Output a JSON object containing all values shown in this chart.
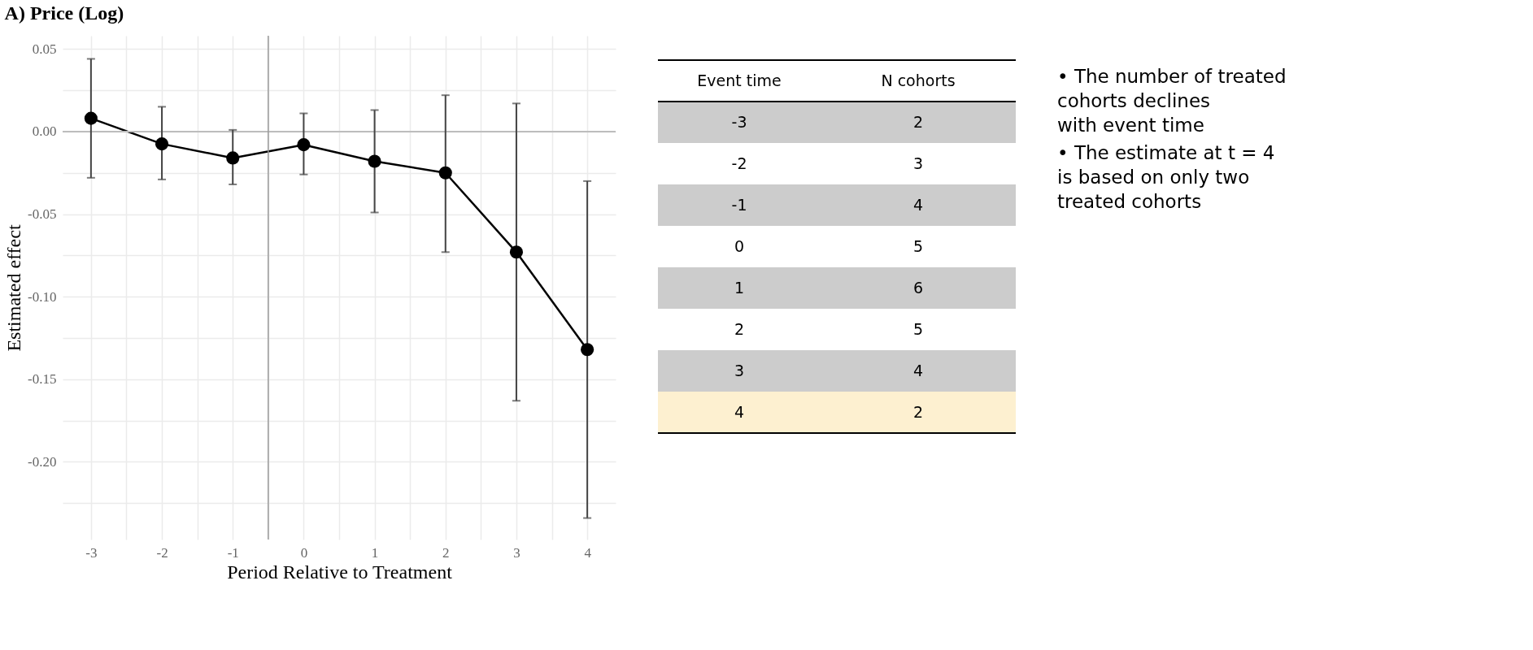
{
  "chart_data": {
    "type": "line",
    "title": "A) Price (Log)",
    "xlabel": "Period Relative to Treatment",
    "ylabel": "Estimated effect",
    "x": [
      -3,
      -2,
      -1,
      0,
      1,
      2,
      3,
      4
    ],
    "series": [
      {
        "color": "#000000",
        "values": [
          0.008,
          -0.0075,
          -0.016,
          -0.008,
          -0.018,
          -0.025,
          -0.073,
          -0.132
        ],
        "errors": [
          [
            -0.028,
            0.044
          ],
          [
            -0.029,
            0.015
          ],
          [
            -0.032,
            0.001
          ],
          [
            -0.026,
            0.011
          ],
          [
            -0.049,
            0.013
          ],
          [
            -0.073,
            0.022
          ],
          [
            -0.163,
            0.017
          ],
          [
            -0.234,
            -0.03
          ]
        ]
      }
    ],
    "xlim": [
      -3.4,
      4.4
    ],
    "xticks": [
      -3,
      {
        "value": -2.5,
        "label": null
      },
      -2,
      {
        "value": -1.5,
        "label": null
      },
      -1,
      {
        "value": -0.5,
        "label": null
      },
      0,
      {
        "value": 0.5,
        "label": null
      },
      1,
      {
        "value": 1.5,
        "label": null
      },
      2,
      {
        "value": 2.5,
        "label": null
      },
      3,
      {
        "value": 3.5,
        "label": null
      },
      4
    ],
    "ylim": [
      -0.247,
      0.058
    ],
    "yticks": [
      {
        "value": 0.05,
        "label": "0.05"
      },
      {
        "value": 0.025,
        "label": null
      },
      {
        "value": 0,
        "label": "0.00"
      },
      {
        "value": -0.025,
        "label": null
      },
      {
        "value": -0.05,
        "label": "-0.05"
      },
      {
        "value": -0.075,
        "label": null
      },
      {
        "value": -0.1,
        "label": "-0.10"
      },
      {
        "value": -0.125,
        "label": null
      },
      {
        "value": -0.15,
        "label": "-0.15"
      },
      {
        "value": -0.175,
        "label": null
      },
      {
        "value": -0.2,
        "label": "-0.20"
      },
      {
        "value": -0.225,
        "label": null
      }
    ],
    "ref_lines": [
      {
        "axis": "x",
        "value": -0.5,
        "color": "#9a9a9a"
      },
      {
        "axis": "y",
        "value": 0,
        "color": "#bdbdbd"
      }
    ],
    "grid": true,
    "marker": "circle",
    "line_style": "solid",
    "annotations": [
      "Event time",
      "N cohorts",
      "-3",
      "2",
      "-2",
      "3",
      "-1",
      "4",
      "0",
      "5",
      "1",
      "6",
      "2",
      "5",
      "3",
      "4",
      "4",
      "2",
      "• The number of treated cohorts declines with event time",
      "• The estimate at t = 4 is based on only two treated cohorts"
    ]
  }
}
